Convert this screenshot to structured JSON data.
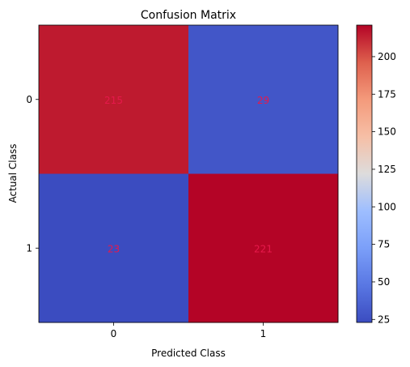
{
  "chart_data": {
    "type": "heatmap",
    "title": "Confusion Matrix",
    "xlabel": "Predicted Class",
    "ylabel": "Actual Class",
    "x_categories": [
      "0",
      "1"
    ],
    "y_categories": [
      "0",
      "1"
    ],
    "values": [
      [
        215,
        29
      ],
      [
        23,
        221
      ]
    ],
    "colormap": "coolwarm",
    "value_label_color": "#e6194b",
    "colorbar": {
      "range": [
        23,
        221
      ],
      "ticks": [
        25,
        50,
        75,
        100,
        125,
        150,
        175,
        200
      ]
    }
  }
}
